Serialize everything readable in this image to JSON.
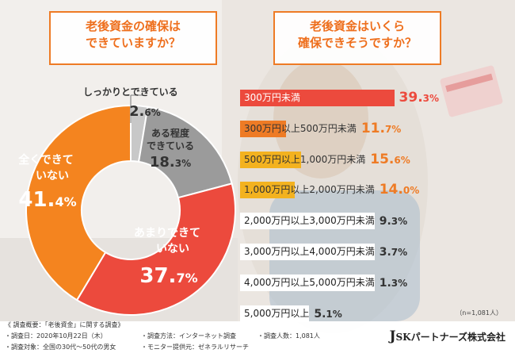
{
  "question_left": [
    "老後資金の確保は",
    "できていますか？"
  ],
  "question_right": [
    "老後資金はいくら",
    "確保できそうですか？"
  ],
  "colors": {
    "orange": "#f4841f",
    "red": "#ec4a3d",
    "gray": "#9b9b9b",
    "lightgray": "#c8c8c8",
    "accent": "#ee6f1d",
    "yellow": "#f3b21f"
  },
  "chart_data": [
    {
      "type": "pie",
      "title": "",
      "unit": "%",
      "slices": [
        {
          "label": "しっかりとできている",
          "value": 2.6,
          "color": "#c8c8c8"
        },
        {
          "label": "ある程度できている",
          "value": 18.3,
          "color": "#9b9b9b"
        },
        {
          "label": "あまりできていない",
          "value": 37.7,
          "color": "#ec4a3d"
        },
        {
          "label": "全くできていない",
          "value": 41.4,
          "color": "#f4841f"
        }
      ]
    },
    {
      "type": "bar",
      "title": "",
      "unit": "%",
      "categories": [
        "300万円未満",
        "300万円以上500万円未満",
        "500万円以上1,000万円未満",
        "1,000万円以上2,000万円未満",
        "2,000万円以上3,000万円未満",
        "3,000万円以上4,000万円未満",
        "4,000万円以上5,000万円未満",
        "5,000万円以上"
      ],
      "values": [
        39.3,
        11.7,
        15.6,
        14.0,
        9.3,
        3.7,
        1.3,
        5.1
      ],
      "bar_colors": [
        "#ec4a3d",
        "#ee7b25",
        "#f3b21f",
        "#f3b21f",
        "#ffffff",
        "#ffffff",
        "#ffffff",
        "#ffffff"
      ],
      "value_colors": [
        "#ec4a3d",
        "#ee7b25",
        "#ee7b25",
        "#ee7b25",
        "#333333",
        "#333333",
        "#333333",
        "#333333"
      ],
      "ylim": [
        0,
        40
      ]
    }
  ],
  "note": "（n=1,081人）",
  "footer": {
    "heading": "《 調査概要：「老後資金」に関する調査》",
    "items": [
      "・調査日：2020年10月22日（木）",
      "・調査方法：インターネット調査",
      "・調査人数：1,081人",
      "・調査対象：全国の30代～50代の男女",
      "・モニター提供元：ゼネラルリサーチ"
    ]
  },
  "company": {
    "initial": "J",
    "rest": "SKパートナーズ株式会社"
  }
}
